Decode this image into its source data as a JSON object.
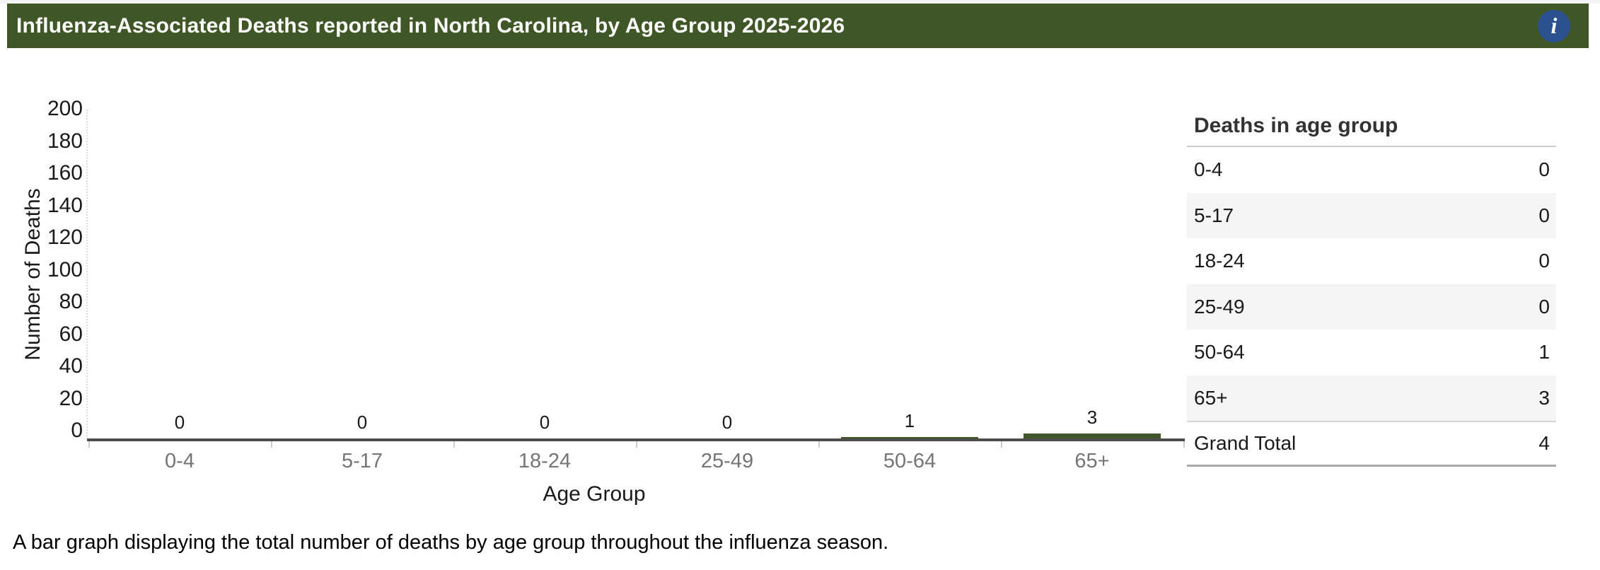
{
  "header": {
    "title": "Influenza-Associated Deaths reported in North Carolina, by Age Group 2025-2026",
    "info_icon_glyph": "i"
  },
  "chart_data": {
    "type": "bar",
    "categories": [
      "0-4",
      "5-17",
      "18-24",
      "25-49",
      "50-64",
      "65+"
    ],
    "values": [
      0,
      0,
      0,
      0,
      1,
      3
    ],
    "data_labels": [
      "0",
      "0",
      "0",
      "0",
      "1",
      "3"
    ],
    "xlabel": "Age Group",
    "ylabel": "Number of Deaths",
    "ylim": [
      0,
      200
    ],
    "yticks": [
      0,
      20,
      40,
      60,
      80,
      100,
      120,
      140,
      160,
      180,
      200
    ],
    "grid": false,
    "legend": "none",
    "bar_color": "#3F5727"
  },
  "table": {
    "title": "Deaths in age group",
    "rows": [
      {
        "label": "0-4",
        "value": "0"
      },
      {
        "label": "5-17",
        "value": "0"
      },
      {
        "label": "18-24",
        "value": "0"
      },
      {
        "label": "25-49",
        "value": "0"
      },
      {
        "label": "50-64",
        "value": "1"
      },
      {
        "label": "65+",
        "value": "3"
      },
      {
        "label": "Grand Total",
        "value": "4"
      }
    ]
  },
  "caption": "A bar graph displaying the total number of deaths by age group throughout the influenza season.",
  "colors": {
    "header_green": "#3F5727",
    "bar_green": "#3F5727",
    "info_blue": "#2C5191",
    "axis_line": "#4d4d4d",
    "x_tick_text": "#757575",
    "zebra_row": "#f5f5f5"
  }
}
